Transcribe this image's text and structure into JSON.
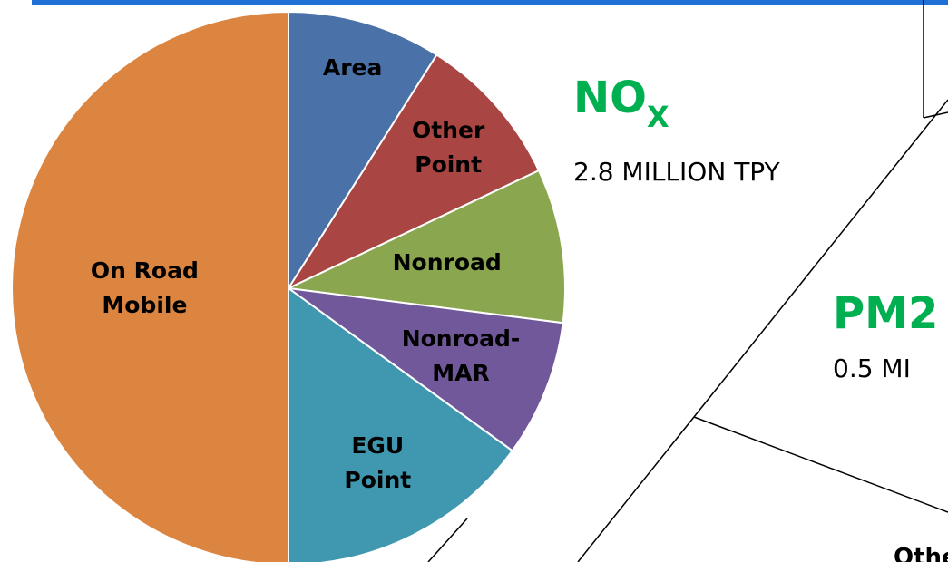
{
  "chart_data": {
    "type": "pie",
    "title": "NO",
    "title_subscript": "X",
    "subtitle": "2.8 MILLION TPY",
    "categories": [
      "Area",
      "Other\nPoint",
      "Nonroad",
      "Nonroad-\nMAR",
      "EGU\nPoint",
      "On Road\nMobile"
    ],
    "values": [
      9,
      9,
      9,
      8,
      15,
      50
    ],
    "colors": [
      "#4a72a8",
      "#a94643",
      "#8aa64f",
      "#71589a",
      "#4098b0",
      "#dc8540"
    ],
    "annotations": [
      "PM2",
      "0.5 MI",
      "Othe"
    ]
  }
}
